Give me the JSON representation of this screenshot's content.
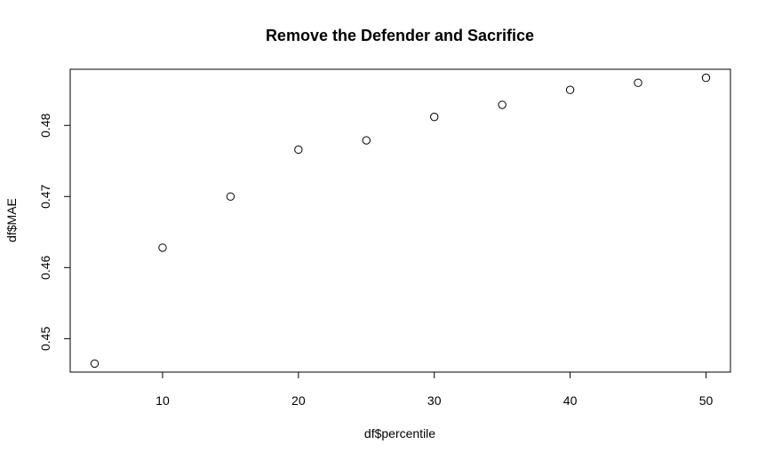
{
  "chart_data": {
    "type": "scatter",
    "title": "Remove the Defender and Sacrifice",
    "xlabel": "df$percentile",
    "ylabel": "df$MAE",
    "x": [
      5,
      10,
      15,
      20,
      25,
      30,
      35,
      40,
      45,
      50
    ],
    "y": [
      0.4465,
      0.4628,
      0.47,
      0.4766,
      0.4779,
      0.4812,
      0.4829,
      0.485,
      0.486,
      0.4867
    ],
    "xlim": [
      3.2,
      51.8
    ],
    "ylim": [
      0.4453,
      0.4879
    ],
    "xticks": [
      10,
      20,
      30,
      40,
      50
    ],
    "yticks": [
      0.45,
      0.46,
      0.47,
      0.48
    ],
    "grid": false,
    "legend": "none",
    "marker": "open-circle",
    "color": "#000000"
  }
}
